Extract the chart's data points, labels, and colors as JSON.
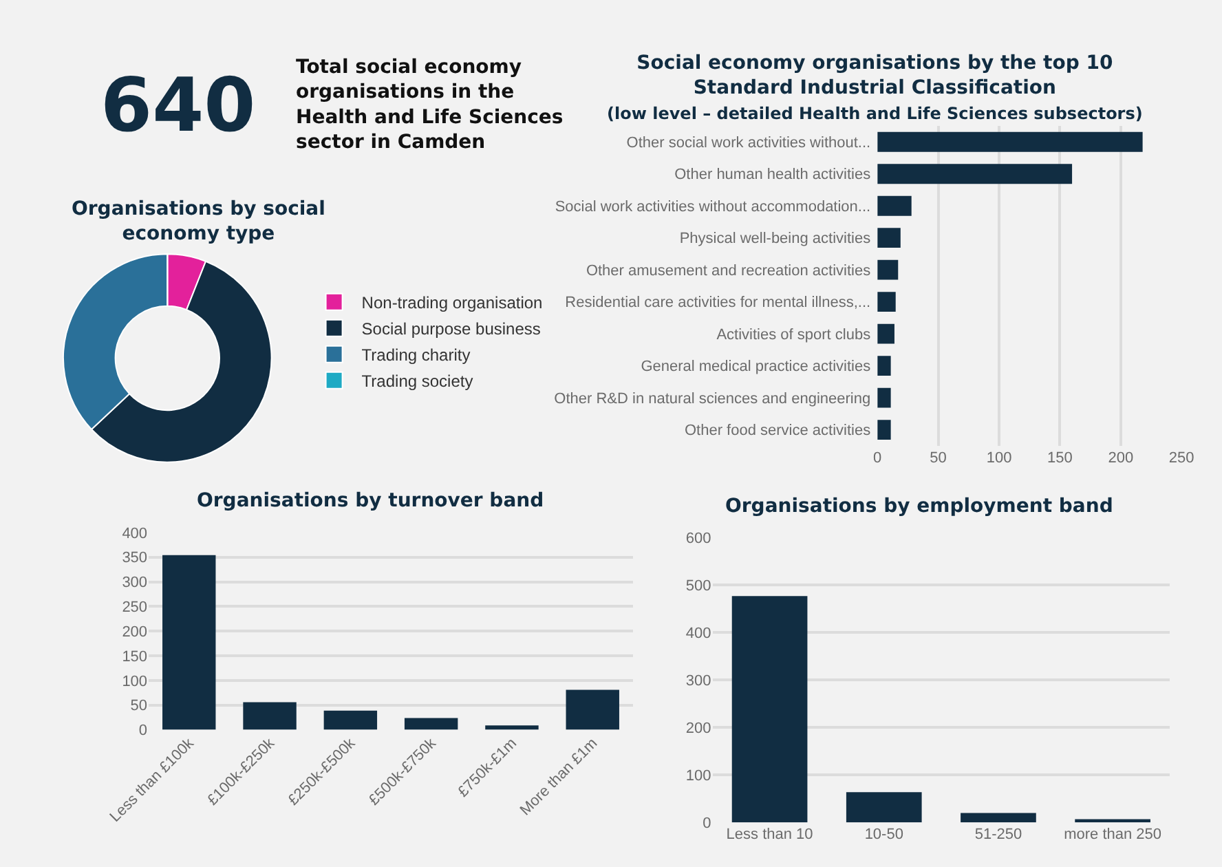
{
  "chart_data": [
    {
      "type": "other",
      "title": "Total social economy organisations in the Health and Life Sciences sector in Camden",
      "annotations": [
        "640"
      ]
    },
    {
      "type": "donut",
      "title": "Organisations by social economy type",
      "categories": [
        "Non-trading organisation",
        "Social purpose business",
        "Trading charity",
        "Trading society"
      ],
      "values": [
        6,
        57,
        37,
        0
      ],
      "colors": [
        "#e3219b",
        "#112d42",
        "#2a7099",
        "#1eaac4"
      ],
      "legend": "right"
    },
    {
      "type": "bar",
      "orientation": "horizontal",
      "title": "Social economy organisations by the top 10 Standard Industrial Classification",
      "subtitle": "(low level – detailed Health and Life Sciences subsectors)",
      "categories": [
        "Other social work activities without...",
        "Other human health activities",
        "Social work activities without accommodation...",
        "Physical well-being activities",
        "Other amusement and recreation activities",
        "Residential care activities for mental illness,...",
        "Activities of sport clubs",
        "General medical practice activities",
        "Other R&D in natural sciences and engineering",
        "Other food service activities"
      ],
      "values": [
        218,
        160,
        28,
        19,
        17,
        15,
        14,
        11,
        11,
        11
      ],
      "color": "#112d42",
      "xlim": [
        0,
        250
      ],
      "xticks": [
        0,
        50,
        100,
        150,
        200,
        250
      ],
      "grid": "x"
    },
    {
      "type": "bar",
      "title": "Organisations by turnover band",
      "categories": [
        "Less than £100k",
        "£100k-£250k",
        "£250k-£500k",
        "£500k-£750k",
        "£750k-£1m",
        "More than £1m"
      ],
      "values": [
        354,
        56,
        39,
        24,
        9,
        81
      ],
      "color": "#112d42",
      "ylim": [
        0,
        400
      ],
      "yticks": [
        0,
        50,
        100,
        150,
        200,
        250,
        300,
        350,
        400
      ],
      "grid": "y"
    },
    {
      "type": "bar",
      "title": "Organisations by employment band",
      "categories": [
        "Less than 10",
        "10-50",
        "51-250",
        "more than 250"
      ],
      "values": [
        477,
        64,
        20,
        7
      ],
      "color": "#112d42",
      "ylim": [
        0,
        600
      ],
      "yticks": [
        0,
        100,
        200,
        300,
        400,
        500,
        600
      ],
      "grid": "y"
    }
  ]
}
